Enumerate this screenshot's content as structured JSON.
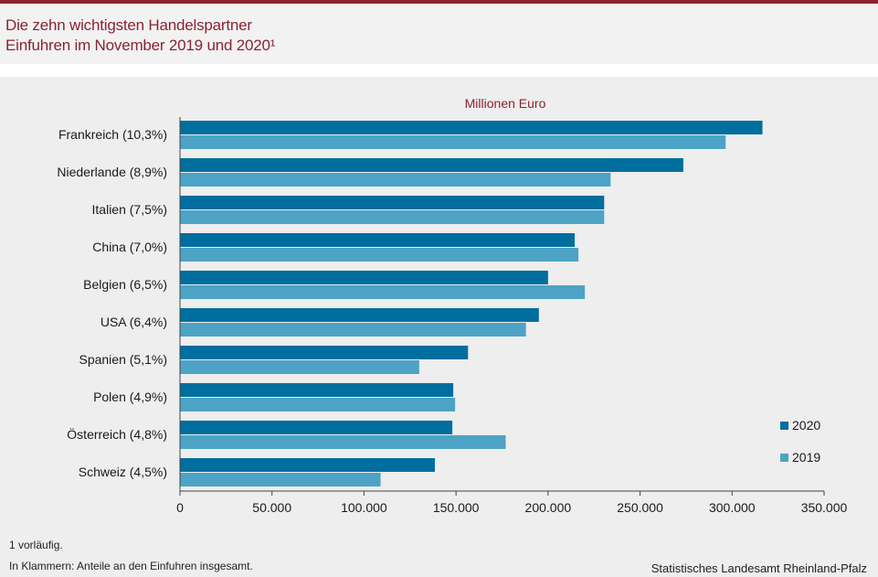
{
  "header": {
    "title_line1": "Die zehn wichtigsten Handelspartner",
    "title_line2": "Einfuhren im November 2019 und 2020¹"
  },
  "footnotes": {
    "note1": "1 vorläufig.",
    "note2": "In Klammern: Anteile an den Einfuhren insgesamt.",
    "source": "Statistisches Landesamt Rheinland-Pfalz"
  },
  "colors": {
    "accent": "#8b2232",
    "series_2020": "#006e9e",
    "series_2019": "#4da3c5"
  },
  "chart_data": {
    "type": "bar",
    "orientation": "horizontal",
    "unit_label": "Millionen Euro",
    "categories": [
      "Frankreich (10,3%)",
      "Niederlande (8,9%)",
      "Italien (7,5%)",
      "China (7,0%)",
      "Belgien (6,5%)",
      "USA (6,4%)",
      "Spanien (5,1%)",
      "Polen (4,9%)",
      "Österreich (4,8%)",
      "Schweiz (4,5%)"
    ],
    "series": [
      {
        "name": "2020",
        "values": [
          316500,
          273500,
          230500,
          214500,
          200000,
          195000,
          156500,
          148500,
          148000,
          138500
        ]
      },
      {
        "name": "2019",
        "values": [
          296500,
          234000,
          230500,
          216500,
          220000,
          188000,
          130000,
          149500,
          177000,
          109000
        ]
      }
    ],
    "xlim": [
      0,
      350000
    ],
    "x_ticks": [
      "0",
      "50.000",
      "100.000",
      "150.000",
      "200.000",
      "250.000",
      "300.000",
      "350.000"
    ],
    "x_tick_values": [
      0,
      50000,
      100000,
      150000,
      200000,
      250000,
      300000,
      350000
    ],
    "legend_position": "right",
    "grid": false
  }
}
